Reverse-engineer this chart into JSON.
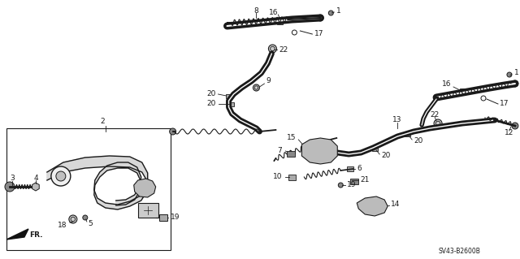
{
  "bg_color": "#ffffff",
  "line_color": "#1a1a1a",
  "diagram_code": "SV43-B2600B",
  "figsize": [
    6.4,
    3.19
  ],
  "dpi": 100
}
